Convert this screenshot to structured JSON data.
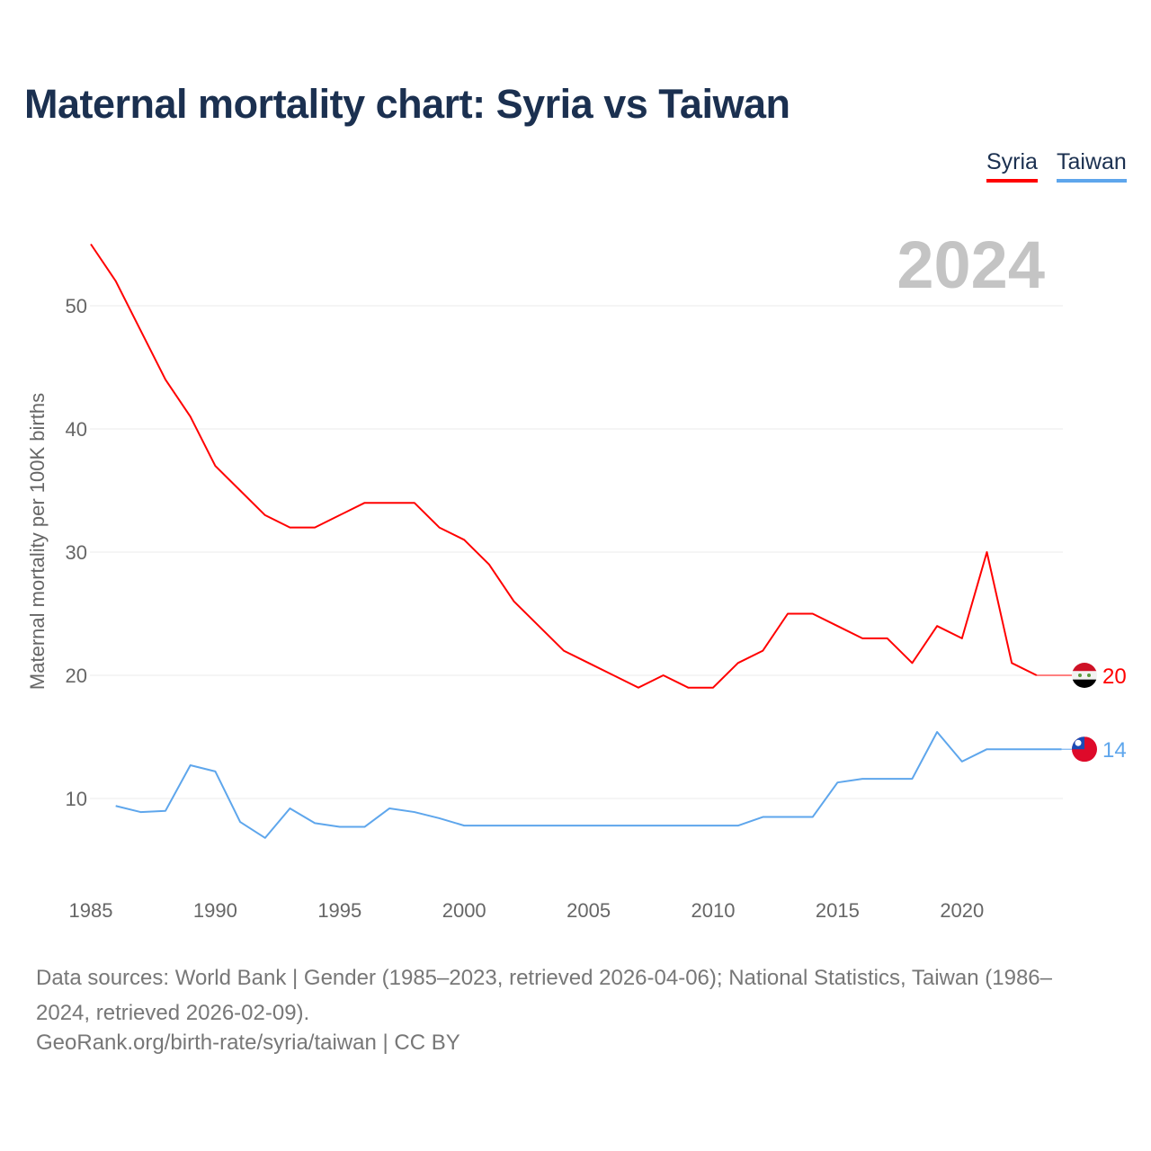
{
  "title": "Maternal mortality chart: Syria vs Taiwan",
  "year_label": "2024",
  "footer": {
    "sources": "Data sources: World Bank | Gender (1985–2023, retrieved 2026-04-06); National Statistics, Taiwan (1986–2024, retrieved 2026-02-09).",
    "credit": "GeoRank.org/birth-rate/syria/taiwan | CC BY"
  },
  "chart_data": {
    "type": "line",
    "title": "Maternal mortality chart: Syria vs Taiwan",
    "xlabel": "",
    "ylabel": "Maternal mortality per 100K births",
    "xlim": [
      1985,
      2024
    ],
    "ylim": [
      5,
      57
    ],
    "x_ticks": [
      "1985",
      "1990",
      "1995",
      "2000",
      "2005",
      "2010",
      "2015",
      "2020"
    ],
    "y_ticks": [
      "10",
      "20",
      "30",
      "40",
      "50"
    ],
    "grid": true,
    "legend_position": "top-right",
    "series": [
      {
        "name": "Syria",
        "color": "#ff0000",
        "end_label": "20",
        "flag": "syria-flag",
        "x": [
          1985,
          1986,
          1987,
          1988,
          1989,
          1990,
          1991,
          1992,
          1993,
          1994,
          1995,
          1996,
          1997,
          1998,
          1999,
          2000,
          2001,
          2002,
          2003,
          2004,
          2005,
          2006,
          2007,
          2008,
          2009,
          2010,
          2011,
          2012,
          2013,
          2014,
          2015,
          2016,
          2017,
          2018,
          2019,
          2020,
          2021,
          2022,
          2023
        ],
        "values": [
          55,
          52,
          48,
          44,
          41,
          37,
          35,
          33,
          32,
          32,
          33,
          34,
          34,
          34,
          32,
          31,
          29,
          26,
          24,
          22,
          21,
          20,
          19,
          20,
          19,
          19,
          21,
          22,
          25,
          25,
          24,
          23,
          23,
          21,
          24,
          23,
          30,
          21,
          20
        ]
      },
      {
        "name": "Taiwan",
        "color": "#5ea6ec",
        "end_label": "14",
        "flag": "taiwan-flag",
        "x": [
          1986,
          1987,
          1988,
          1989,
          1990,
          1991,
          1992,
          1993,
          1994,
          1995,
          1996,
          1997,
          1998,
          1999,
          2000,
          2001,
          2002,
          2003,
          2004,
          2005,
          2006,
          2007,
          2008,
          2009,
          2010,
          2011,
          2012,
          2013,
          2014,
          2015,
          2016,
          2017,
          2018,
          2019,
          2020,
          2021,
          2022,
          2023,
          2024
        ],
        "values": [
          9.4,
          8.9,
          9.0,
          12.7,
          12.2,
          8.1,
          6.8,
          9.2,
          8.0,
          7.7,
          7.7,
          9.2,
          8.9,
          8.4,
          7.8,
          7.8,
          7.8,
          7.8,
          7.8,
          7.8,
          7.8,
          7.8,
          7.8,
          7.8,
          7.8,
          7.8,
          8.5,
          8.5,
          8.5,
          11.3,
          11.6,
          11.6,
          11.6,
          15.4,
          13.0,
          14.0,
          14.0,
          14.0,
          14.0
        ]
      }
    ]
  }
}
